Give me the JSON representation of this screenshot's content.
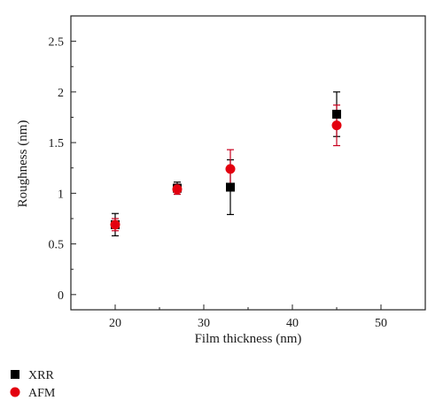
{
  "chart_data": {
    "type": "scatter",
    "xlabel": "Film thickness (nm)",
    "ylabel": "Roughness (nm)",
    "xlim": [
      15,
      55
    ],
    "ylim": [
      -0.15,
      2.75
    ],
    "xticks": [
      20,
      30,
      40,
      50
    ],
    "yticks": [
      0,
      0.5,
      1,
      1.5,
      2,
      2.5
    ],
    "ytick_labels": [
      "0",
      "0.5",
      "1",
      "1.5",
      "2",
      "2.5"
    ],
    "legend_position": "bottom-left, below plot",
    "series": [
      {
        "name": "XRR",
        "marker": "square",
        "color": "#000000",
        "error_color": "#000000",
        "points": [
          {
            "x": 20,
            "y": 0.69,
            "err": 0.11
          },
          {
            "x": 27,
            "y": 1.05,
            "err": 0.06
          },
          {
            "x": 33,
            "y": 1.06,
            "err": 0.27
          },
          {
            "x": 45,
            "y": 1.78,
            "err": 0.22
          }
        ]
      },
      {
        "name": "AFM",
        "marker": "circle",
        "color": "#e3000f",
        "error_color": "#c8001e",
        "points": [
          {
            "x": 20,
            "y": 0.69,
            "err": 0.06
          },
          {
            "x": 27,
            "y": 1.04,
            "err": 0.05
          },
          {
            "x": 33,
            "y": 1.24,
            "err": 0.19
          },
          {
            "x": 45,
            "y": 1.67,
            "err": 0.2
          }
        ]
      }
    ]
  }
}
